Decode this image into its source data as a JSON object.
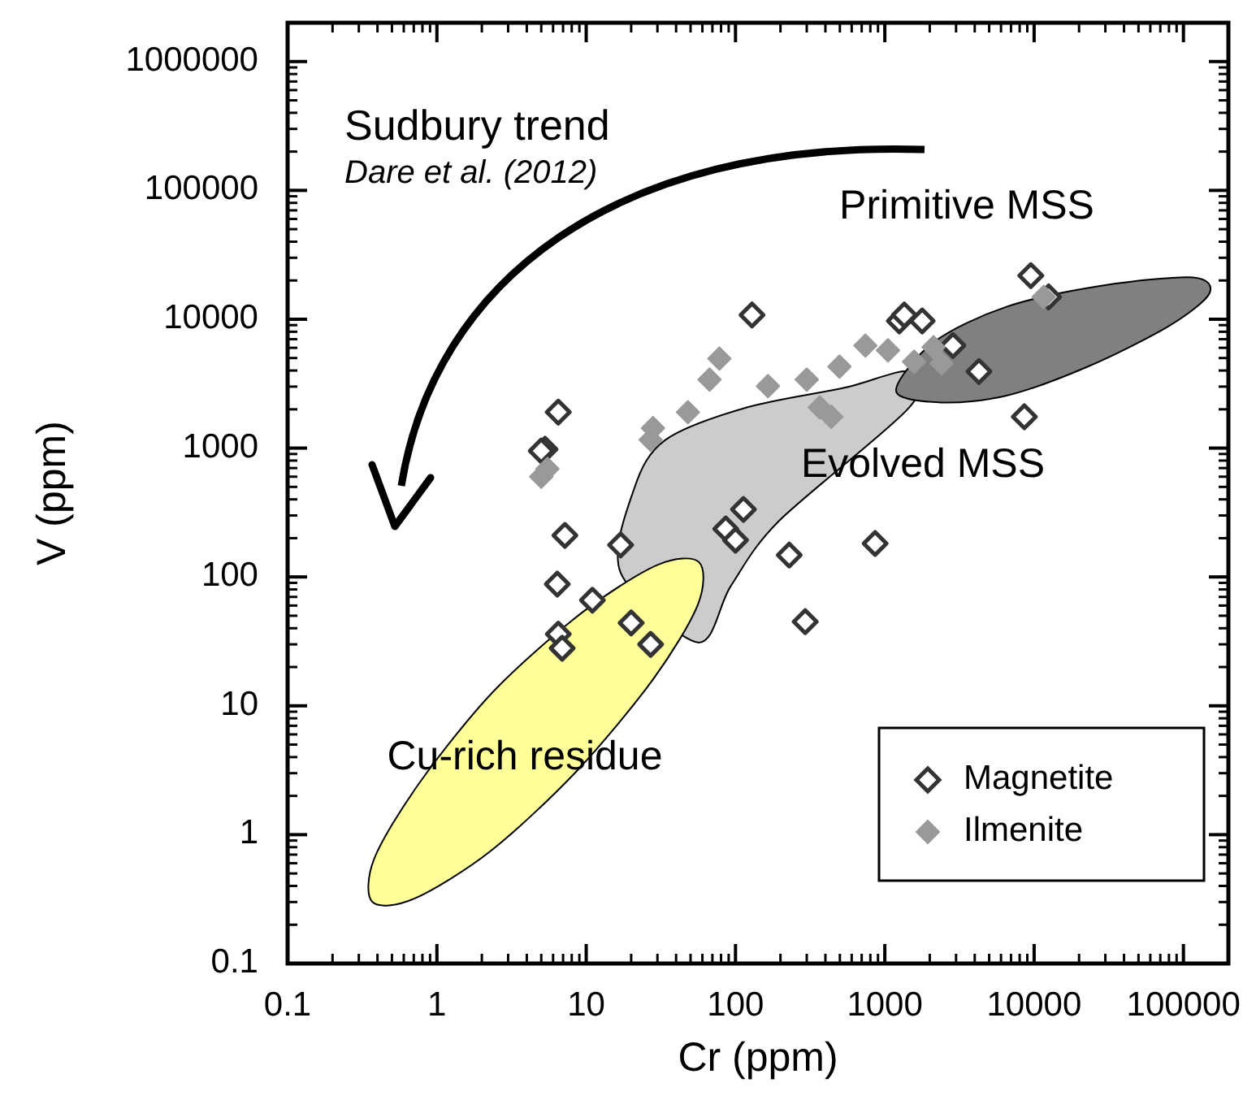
{
  "chart_data": {
    "type": "scatter",
    "xlabel": "Cr (ppm)",
    "ylabel": "V (ppm)",
    "log": "xy",
    "grid": false,
    "legend": "bottom right",
    "marker": "diamond",
    "xlim": [
      0.1,
      200000
    ],
    "xticks": [
      0.1,
      1,
      10,
      100,
      1000,
      10000,
      100000
    ],
    "ylim": [
      0.1,
      2000000
    ],
    "yticks": [
      0.1,
      1,
      10,
      100,
      1000,
      10000,
      100000,
      1000000
    ],
    "annotations": [
      "Sudbury trend",
      "Dare et al. (2012)",
      "Primitive MSS",
      "Evolved MSS",
      "Cu-rich residue"
    ],
    "series": [
      {
        "type": "area",
        "marker": "none",
        "color": "#cccccc",
        "x": [
          17,
          21,
          34,
          119,
          535,
          1460,
          1460,
          196,
          93,
          56
        ],
        "values": [
          108,
          488,
          1160,
          2070,
          2940,
          3930,
          2070,
          273,
          85,
          31
        ]
      },
      {
        "type": "area",
        "marker": "none",
        "color": "#808080",
        "x": [
          1190,
          2120,
          6530,
          29300,
          116000,
          149000,
          79800,
          22900,
          6530,
          2400
        ],
        "values": [
          2770,
          6620,
          12500,
          18300,
          21100,
          15800,
          8850,
          4290,
          2550,
          2260
        ]
      },
      {
        "type": "area",
        "marker": "none",
        "color": "#ffff99",
        "x": [
          57,
          56,
          28,
          8.6,
          2.3,
          0.71,
          0.37,
          0.38,
          0.76,
          2.4,
          9.4,
          30
        ],
        "values": [
          130,
          61,
          16,
          3.1,
          0.75,
          0.32,
          0.3,
          0.65,
          2.5,
          13,
          53,
          124
        ]
      },
      {
        "name": "Magnetite",
        "color": "#333333",
        "x": [
          129,
          6.5,
          5.3,
          5.0,
          7.2,
          17,
          113,
          86,
          100,
          229,
          861,
          6.4,
          11,
          6.5,
          6.9,
          20,
          27,
          293,
          1250,
          9500,
          12500,
          1350,
          1780,
          2860,
          4270,
          8600
        ],
        "values": [
          10800,
          1900,
          980,
          950,
          210,
          177,
          334,
          236,
          193,
          148,
          182,
          88,
          66,
          36,
          28,
          44,
          30,
          45,
          9700,
          21800,
          14900,
          10800,
          9700,
          6250,
          3930,
          1750
        ]
      },
      {
        "name": "Ilmenite",
        "color": "#999999",
        "x": [
          78,
          67,
          48,
          27,
          28,
          165,
          300,
          367,
          438,
          497,
          741,
          1050,
          1570,
          2120,
          2400,
          11600,
          5.0,
          5.5
        ],
        "values": [
          4950,
          3400,
          1900,
          1160,
          1430,
          3030,
          3400,
          2070,
          1750,
          4290,
          6250,
          5730,
          4680,
          6070,
          4540,
          14900,
          600,
          690
        ]
      }
    ]
  }
}
